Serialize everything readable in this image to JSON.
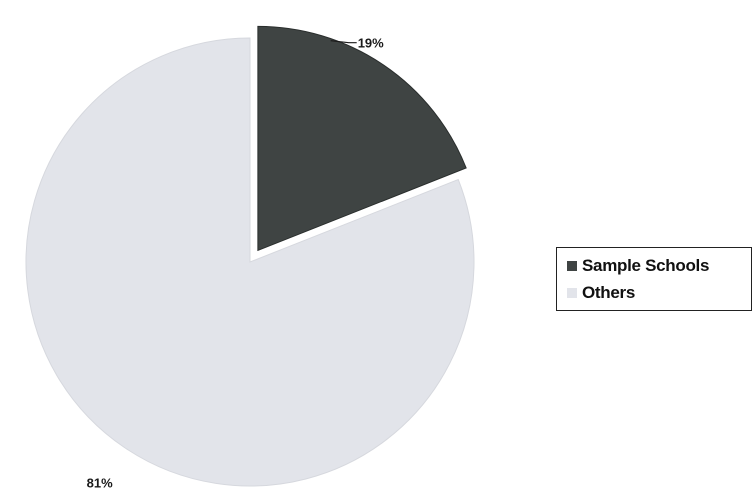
{
  "chart_data": {
    "type": "pie",
    "title": "",
    "slices": [
      {
        "name": "Sample Schools",
        "value": 19,
        "label": "19%",
        "color": "#3f4443",
        "exploded": true
      },
      {
        "name": "Others",
        "value": 81,
        "label": "81%",
        "color": "#e2e4ea",
        "exploded": false
      }
    ],
    "legend": {
      "position": "right",
      "entries": [
        "Sample Schools",
        "Others"
      ]
    }
  }
}
